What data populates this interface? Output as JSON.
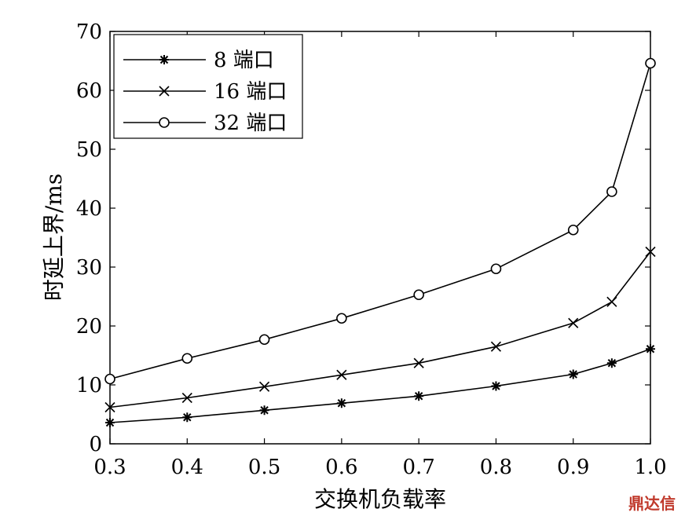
{
  "chart_data": {
    "type": "line",
    "x": [
      0.3,
      0.4,
      0.5,
      0.6,
      0.7,
      0.8,
      0.9,
      0.95,
      1.0
    ],
    "xticks": [
      "0.3",
      "0.4",
      "0.5",
      "0.6",
      "0.7",
      "0.8",
      "0.9",
      "1.0"
    ],
    "yticks": [
      "0",
      "10",
      "20",
      "30",
      "40",
      "50",
      "60",
      "70"
    ],
    "xlim": [
      0.3,
      1.0
    ],
    "ylim": [
      0,
      70
    ],
    "xlabel": "交换机负载率",
    "ylabel": "时延上界/ms",
    "grid": false,
    "legend_position": "top-left",
    "series": [
      {
        "name": "8 端口",
        "marker": "asterisk",
        "values": [
          3.6,
          4.5,
          5.7,
          6.9,
          8.1,
          9.8,
          11.8,
          13.7,
          16.1
        ]
      },
      {
        "name": "16 端口",
        "marker": "x",
        "values": [
          6.2,
          7.8,
          9.7,
          11.7,
          13.7,
          16.5,
          20.5,
          24.1,
          32.6
        ]
      },
      {
        "name": "32 端口",
        "marker": "circle",
        "values": [
          11.0,
          14.5,
          17.7,
          21.3,
          25.3,
          29.7,
          36.3,
          42.8,
          64.6
        ]
      }
    ]
  },
  "watermark": "鼎达信"
}
